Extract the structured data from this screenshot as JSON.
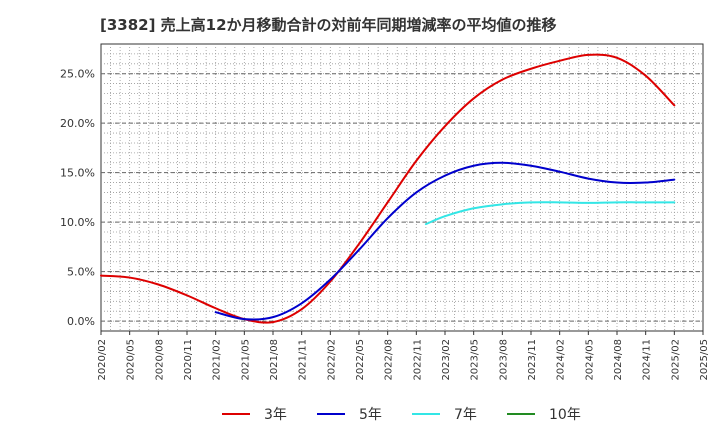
{
  "chart_data": {
    "type": "line",
    "title": "[3382]  売上高12か月移動合計の対前年同期増減率の平均値の推移",
    "xlabel": "",
    "ylabel": "",
    "ylim": [
      -1.0,
      28.0
    ],
    "yticks": [
      "0.0%",
      "5.0%",
      "10.0%",
      "15.0%",
      "20.0%",
      "25.0%"
    ],
    "ytick_values": [
      0,
      5,
      10,
      15,
      20,
      25
    ],
    "xticks": [
      "2020/02",
      "2020/05",
      "2020/08",
      "2020/11",
      "2021/02",
      "2021/05",
      "2021/08",
      "2021/11",
      "2022/02",
      "2022/05",
      "2022/08",
      "2022/11",
      "2023/02",
      "2023/05",
      "2023/08",
      "2023/11",
      "2024/02",
      "2024/05",
      "2024/08",
      "2024/11",
      "2025/02",
      "2025/05"
    ],
    "grid": true,
    "legend_position": "bottom",
    "series": [
      {
        "name": "3年",
        "color": "#dd0000",
        "points": [
          [
            "2020/02",
            4.6
          ],
          [
            "2020/05",
            4.4
          ],
          [
            "2020/08",
            3.7
          ],
          [
            "2020/11",
            2.6
          ],
          [
            "2021/02",
            1.3
          ],
          [
            "2021/05",
            0.2
          ],
          [
            "2021/08",
            -0.1
          ],
          [
            "2021/11",
            1.2
          ],
          [
            "2022/02",
            4.0
          ],
          [
            "2022/05",
            7.8
          ],
          [
            "2022/08",
            12.0
          ],
          [
            "2022/11",
            16.2
          ],
          [
            "2023/02",
            19.7
          ],
          [
            "2023/05",
            22.5
          ],
          [
            "2023/08",
            24.4
          ],
          [
            "2023/11",
            25.5
          ],
          [
            "2024/02",
            26.3
          ],
          [
            "2024/05",
            26.9
          ],
          [
            "2024/08",
            26.6
          ],
          [
            "2024/11",
            24.8
          ],
          [
            "2025/02",
            21.8
          ]
        ]
      },
      {
        "name": "5年",
        "color": "#0000cc",
        "points": [
          [
            "2021/02",
            0.9
          ],
          [
            "2021/05",
            0.2
          ],
          [
            "2021/08",
            0.4
          ],
          [
            "2021/11",
            1.8
          ],
          [
            "2022/02",
            4.2
          ],
          [
            "2022/05",
            7.2
          ],
          [
            "2022/08",
            10.4
          ],
          [
            "2022/11",
            13.0
          ],
          [
            "2023/02",
            14.7
          ],
          [
            "2023/05",
            15.7
          ],
          [
            "2023/08",
            16.0
          ],
          [
            "2023/11",
            15.7
          ],
          [
            "2024/02",
            15.1
          ],
          [
            "2024/05",
            14.4
          ],
          [
            "2024/08",
            14.0
          ],
          [
            "2024/11",
            14.0
          ],
          [
            "2025/02",
            14.3
          ]
        ]
      },
      {
        "name": "7年",
        "color": "#33e6e6",
        "points": [
          [
            "2022/12",
            9.8
          ],
          [
            "2023/02",
            10.6
          ],
          [
            "2023/05",
            11.4
          ],
          [
            "2023/08",
            11.8
          ],
          [
            "2023/11",
            12.0
          ],
          [
            "2024/02",
            12.0
          ],
          [
            "2024/05",
            11.95
          ],
          [
            "2024/08",
            12.0
          ],
          [
            "2024/11",
            12.0
          ],
          [
            "2025/02",
            12.0
          ]
        ]
      },
      {
        "name": "10年",
        "color": "#228b22",
        "points": []
      }
    ]
  }
}
